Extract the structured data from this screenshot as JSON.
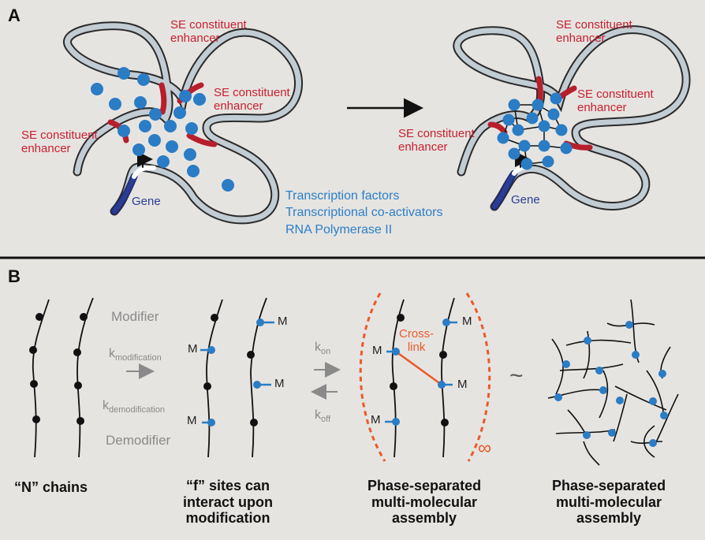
{
  "panel_a": {
    "label": "A",
    "enhancer_line1": "SE constituent",
    "enhancer_line2": "enhancer",
    "gene": "Gene",
    "legend": [
      "Transcription factors",
      "Transcriptional co-activators",
      "RNA Polymerase II"
    ]
  },
  "panel_b": {
    "label": "B",
    "modifier": "Modifier",
    "demodifier": "Demodifier",
    "k_mod": "k",
    "k_mod_sub": "modification",
    "k_demod": "k",
    "k_demod_sub": "demodification",
    "k_on": "k",
    "k_on_sub": "on",
    "k_off": "k",
    "k_off_sub": "off",
    "m": "M",
    "crosslink_line1": "Cross-",
    "crosslink_line2": "link",
    "infinity": "∞",
    "tilde": "~",
    "caption1": "“N” chains",
    "caption2_l1": "“f” sites can",
    "caption2_l2": "interact upon",
    "caption2_l3": "modification",
    "caption3_l1": "Phase-separated",
    "caption3_l2": "multi-molecular",
    "caption3_l3": "assembly",
    "caption4_l1": "Phase-separated",
    "caption4_l2": "multi-molecular",
    "caption4_l3": "assembly"
  },
  "colors": {
    "enhancer": "#b81e2c",
    "protein": "#2a7cc4",
    "gene": "#2a3c94",
    "orange": "#ea5a2a"
  }
}
